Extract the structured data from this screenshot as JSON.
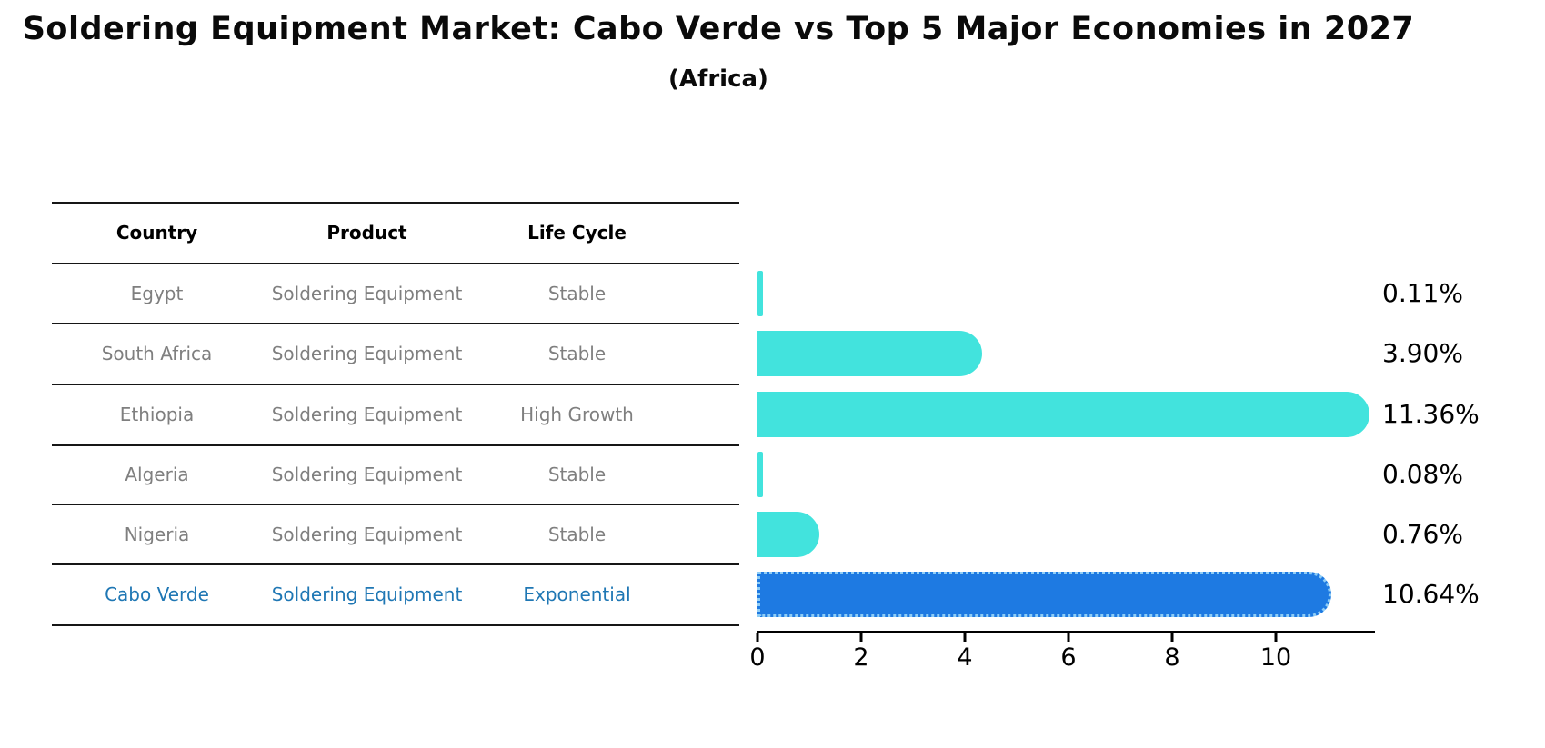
{
  "title": "Soldering Equipment Market: Cabo Verde vs Top 5 Major Economies in 2027",
  "subtitle": "(Africa)",
  "table": {
    "headers": [
      "Country",
      "Product",
      "Life Cycle"
    ],
    "rows": [
      {
        "country": "Egypt",
        "product": "Soldering Equipment",
        "life_cycle": "Stable",
        "highlight": false
      },
      {
        "country": "South Africa",
        "product": "Soldering Equipment",
        "life_cycle": "Stable",
        "highlight": false
      },
      {
        "country": "Ethiopia",
        "product": "Soldering Equipment",
        "life_cycle": "High Growth",
        "highlight": false
      },
      {
        "country": "Algeria",
        "product": "Soldering Equipment",
        "life_cycle": "Stable",
        "highlight": false
      },
      {
        "country": "Nigeria",
        "product": "Soldering Equipment",
        "life_cycle": "Stable",
        "highlight": false
      },
      {
        "country": "Cabo Verde",
        "product": "Soldering Equipment",
        "life_cycle": "Exponential",
        "highlight": true
      }
    ]
  },
  "chart_data": {
    "type": "bar",
    "orientation": "horizontal",
    "title": "Soldering Equipment Market: Cabo Verde vs Top 5 Major Economies in 2027 (Africa)",
    "categories": [
      "Egypt",
      "South Africa",
      "Ethiopia",
      "Algeria",
      "Nigeria",
      "Cabo Verde"
    ],
    "values": [
      0.11,
      3.9,
      11.36,
      0.08,
      0.76,
      10.64
    ],
    "value_labels": [
      "0.11%",
      "3.90%",
      "11.36%",
      "0.08%",
      "0.76%",
      "10.64%"
    ],
    "units": "percent",
    "x_ticks": [
      0,
      2,
      4,
      6,
      8,
      10
    ],
    "x_tick_labels": [
      "0",
      "2",
      "4",
      "6",
      "8",
      "10"
    ],
    "xlim": [
      0,
      11.9
    ],
    "grid": false,
    "legend": false,
    "highlight_index": 5
  },
  "colors": {
    "bar_cyan": "#42E3DD",
    "bar_highlight_blue": "#1E7AE2",
    "bar_highlight_edge": "#8ECDF6",
    "table_text_gray": "#7f7f7f",
    "highlight_text_blue": "#1F77B4",
    "axis_black": "#000000"
  }
}
